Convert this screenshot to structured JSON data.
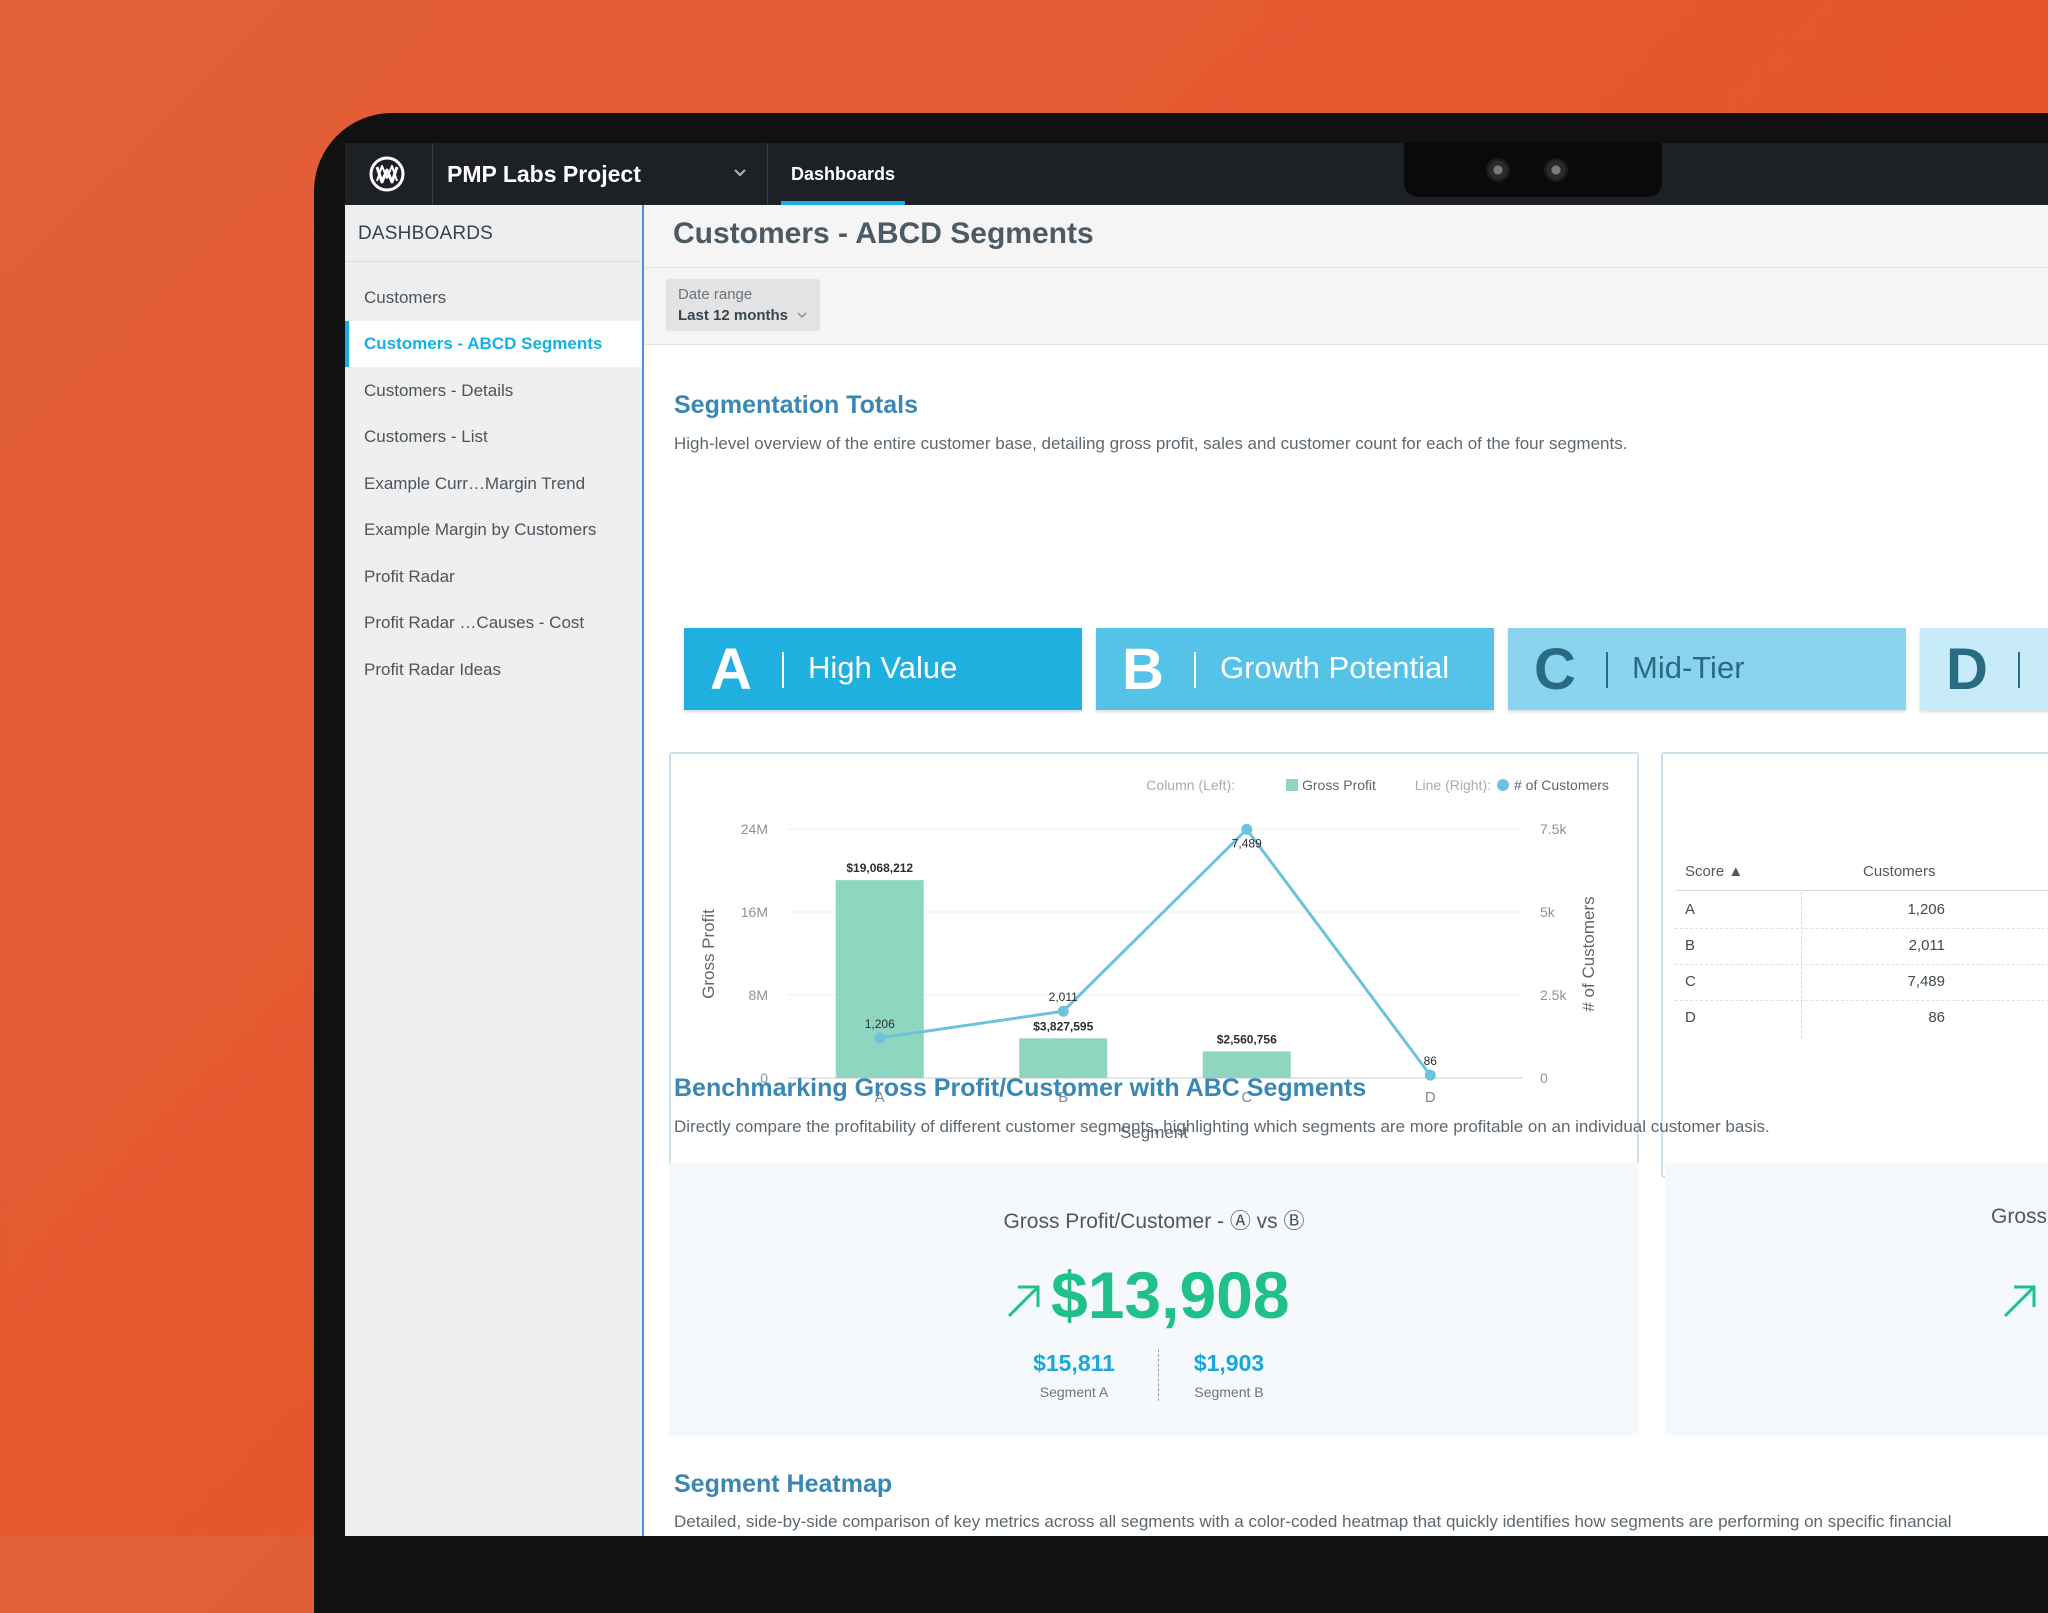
{
  "topbar": {
    "project_name": "PMP Labs Project",
    "nav_tab": "Dashboards"
  },
  "sidebar": {
    "title": "DASHBOARDS",
    "items": [
      {
        "label": "Customers"
      },
      {
        "label": "Customers - ABCD Segments",
        "active": true
      },
      {
        "label": "Customers - Details"
      },
      {
        "label": "Customers - List"
      },
      {
        "label": "Example Curr…Margin Trend"
      },
      {
        "label": "Example Margin by Customers"
      },
      {
        "label": "Profit Radar"
      },
      {
        "label": "Profit Radar …Causes - Cost"
      },
      {
        "label": "Profit Radar Ideas"
      }
    ]
  },
  "page": {
    "title": "Customers - ABCD Segments",
    "date_filter": {
      "label": "Date range",
      "value": "Last 12 months"
    }
  },
  "totals": {
    "title": "Segmentation Totals",
    "description": "High-level overview of the entire customer base, detailing gross profit, sales and customer count for each of the four segments.",
    "segments": [
      {
        "letter": "A",
        "name": "High Value",
        "color": "#1fb0e0"
      },
      {
        "letter": "B",
        "name": "Growth Potential",
        "color": "#55c2e8"
      },
      {
        "letter": "C",
        "name": "Mid-Tier",
        "color": "#8ad4ef"
      },
      {
        "letter": "D",
        "name": "",
        "color": "#c7ebf8"
      }
    ]
  },
  "chart_data": {
    "type": "bar",
    "categories": [
      "A",
      "B",
      "C",
      "D"
    ],
    "series": [
      {
        "name": "Gross Profit",
        "kind": "column",
        "axis": "left",
        "color": "#8fd6c0",
        "values": [
          19068212,
          3827595,
          2560756,
          null
        ],
        "labels": [
          "$19,068,212",
          "$3,827,595",
          "$2,560,756",
          ""
        ]
      },
      {
        "name": "# of Customers",
        "kind": "line",
        "axis": "right",
        "color": "#6cc3dd",
        "values": [
          1206,
          2011,
          7489,
          86
        ],
        "labels": [
          "1,206",
          "2,011",
          "7,489",
          "86"
        ]
      }
    ],
    "legend_prefix_left": "Column (Left):",
    "legend_prefix_right": "Line (Right):",
    "xlabel": "Segment",
    "ylabel": "Gross Profit",
    "y2label": "# of Customers",
    "ylim": [
      0,
      24000000
    ],
    "y2lim": [
      0,
      7500
    ],
    "yticks": [
      "0",
      "8M",
      "16M",
      "24M"
    ],
    "y2ticks": [
      "0",
      "2.5k",
      "5k",
      "7.5k"
    ],
    "legend_position": "top-right",
    "grid": true
  },
  "score_table": {
    "headers": [
      "Score ▲",
      "Customers"
    ],
    "rows": [
      [
        "A",
        "1,206"
      ],
      [
        "B",
        "2,011"
      ],
      [
        "C",
        "7,489"
      ],
      [
        "D",
        "86"
      ]
    ]
  },
  "benchmark": {
    "title": "Benchmarking Gross Profit/Customer with ABC Segments",
    "description": "Directly compare the profitability of different customer segments, highlighting which segments are more profitable on an individual customer basis.",
    "card1": {
      "title": "Gross Profit/Customer - Ⓐ vs Ⓑ",
      "value": "$13,908",
      "left_value": "$15,811",
      "left_label": "Segment A",
      "right_value": "$1,903",
      "right_label": "Segment B"
    },
    "card2": {
      "title": "Gross"
    }
  },
  "heatmap": {
    "title": "Segment Heatmap",
    "description": "Detailed, side-by-side comparison of key metrics across all segments with a color-coded heatmap that quickly identifies how segments are performing on specific financial"
  }
}
